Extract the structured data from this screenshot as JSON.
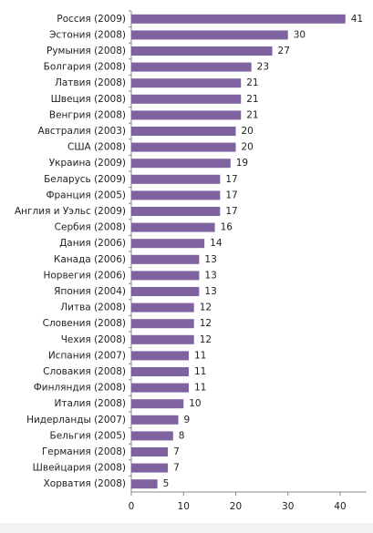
{
  "chart_data": {
    "type": "bar",
    "orientation": "horizontal",
    "categories": [
      "Россия (2009)",
      "Эстония (2008)",
      "Румыния (2008)",
      "Болгария (2008)",
      "Латвия (2008)",
      "Швеция (2008)",
      "Венгрия (2008)",
      "Австралия (2003)",
      "США (2008)",
      "Украина (2009)",
      "Беларусь (2009)",
      "Франция (2005)",
      "Англия и Уэльс (2009)",
      "Сербия (2008)",
      "Дания (2006)",
      "Канада (2006)",
      "Норвегия (2006)",
      "Япония (2004)",
      "Литва (2008)",
      "Словения (2008)",
      "Чехия (2008)",
      "Испания (2007)",
      "Словакия (2008)",
      "Финляндия (2008)",
      "Италия (2008)",
      "Нидерланды (2007)",
      "Бельгия (2005)",
      "Германия (2008)",
      "Швейцария (2008)",
      "Хорватия (2008)"
    ],
    "values": [
      41,
      30,
      27,
      23,
      21,
      21,
      21,
      20,
      20,
      19,
      17,
      17,
      17,
      16,
      14,
      13,
      13,
      13,
      12,
      12,
      12,
      11,
      11,
      11,
      10,
      9,
      8,
      7,
      7,
      5
    ],
    "color": "#7f63a1",
    "xlim": [
      0,
      45
    ],
    "xticks": [
      0,
      10,
      20,
      30,
      40
    ]
  }
}
